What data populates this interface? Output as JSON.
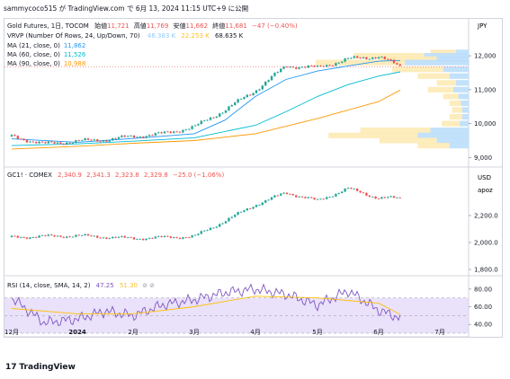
{
  "header": {
    "snapshot_line": "sammycoco515 が TradingView.com で 6月 13, 2024 11:15 UTC+9 に公開"
  },
  "currency_label": "JPY",
  "usd_label": "USD",
  "apoz_label": "apoz",
  "footer": {
    "brand": "TradingView"
  },
  "panes": {
    "main": {
      "symbol": "Gold Futures, 1日, TOCOM",
      "ohlc": {
        "open_label": "始値",
        "open": "11,721",
        "high_label": "高値",
        "high": "11,769",
        "low_label": "安値",
        "low": "11,662",
        "close_label": "終値",
        "close": "11,681",
        "change": "−47 (−0.40%)"
      },
      "vrvp": {
        "label": "VRVP (Number Of Rows, 24, Up/Down, 70)",
        "v1": "46.383 K",
        "v2": "22.253 K",
        "v3": "68.635 K"
      },
      "ma": [
        {
          "label": "MA (21, close, 0)",
          "value": "11,862",
          "color": "#2196f3"
        },
        {
          "label": "MA (60, close, 0)",
          "value": "11,526",
          "color": "#00bcd4"
        },
        {
          "label": "MA (90, close, 0)",
          "value": "10,988",
          "color": "#ff9800"
        }
      ]
    },
    "gc": {
      "label": "GC1! · COMEX",
      "o": "2,340.9",
      "h": "2,341.3",
      "l": "2,323.8",
      "c": "2,329.8",
      "change": "−25.0 (−1.06%)"
    },
    "rsi": {
      "label": "RSI (14, close, SMA, 14, 2)",
      "v1": "47.25",
      "v2": "51.30"
    }
  },
  "colors": {
    "up": "#26a69a",
    "down": "#ef5350",
    "rsi": "#7e57c2",
    "rsi_ma": "#ffc107",
    "band": "#d9c8f5"
  },
  "chart_data": [
    {
      "type": "line",
      "pane": "main",
      "y_axis_ticks": [
        "12,000",
        "11,000",
        "10,000",
        "9,000"
      ],
      "ylim": [
        8850,
        12400
      ],
      "x_ticks": [
        "12月",
        "2024",
        "2月",
        "3月",
        "4月",
        "5月",
        "6月",
        "7月"
      ],
      "series": [
        {
          "name": "Gold Futures, 1日, TOCOM",
          "x": [
            "12月",
            "12月中",
            "2024",
            "1月中",
            "2月",
            "2月中",
            "3月",
            "3月中",
            "4月",
            "4月中",
            "5月",
            "5月中",
            "6月",
            "6月中"
          ],
          "values": [
            9620,
            9400,
            9480,
            9520,
            9620,
            9700,
            9900,
            10400,
            10980,
            11700,
            11650,
            11900,
            11980,
            11681
          ]
        },
        {
          "name": "MA (21, close, 0)",
          "x": [
            "12月",
            "2024",
            "2月",
            "3月",
            "3月中",
            "4月",
            "4月中",
            "5月",
            "5月中",
            "6月",
            "6月中"
          ],
          "values": [
            9550,
            9450,
            9560,
            9700,
            10100,
            10800,
            11300,
            11550,
            11700,
            11840,
            11862
          ]
        },
        {
          "name": "MA (60, close, 0)",
          "x": [
            "12月",
            "2024",
            "2月",
            "3月",
            "4月",
            "4月中",
            "5月",
            "5月中",
            "6月",
            "6月中"
          ],
          "values": [
            9350,
            9400,
            9480,
            9580,
            9950,
            10350,
            10800,
            11150,
            11400,
            11526
          ]
        },
        {
          "name": "MA (90, close, 0)",
          "x": [
            "12月",
            "2024",
            "2月",
            "3月",
            "4月",
            "5月",
            "6月",
            "6月中"
          ],
          "values": [
            9250,
            9330,
            9420,
            9500,
            9700,
            10150,
            10650,
            10988
          ]
        }
      ],
      "volume_profile_rows": [
        {
          "price": 12100,
          "up": 10,
          "down": 20
        },
        {
          "price": 12000,
          "up": 35,
          "down": 55
        },
        {
          "price": 11900,
          "up": 25,
          "down": 45
        },
        {
          "price": 11800,
          "up": 50,
          "down": 70
        },
        {
          "price": 11600,
          "up": 20,
          "down": 40
        },
        {
          "price": 11400,
          "up": 15,
          "down": 25
        },
        {
          "price": 11200,
          "up": 10,
          "down": 15
        },
        {
          "price": 11000,
          "up": 12,
          "down": 20
        },
        {
          "price": 10800,
          "up": 8,
          "down": 12
        },
        {
          "price": 10600,
          "up": 6,
          "down": 9
        },
        {
          "price": 10400,
          "up": 5,
          "down": 8
        },
        {
          "price": 10200,
          "up": 5,
          "down": 10
        },
        {
          "price": 10000,
          "up": 7,
          "down": 14
        },
        {
          "price": 9800,
          "up": 30,
          "down": 55
        },
        {
          "price": 9650,
          "up": 40,
          "down": 70
        },
        {
          "price": 9500,
          "up": 25,
          "down": 45
        },
        {
          "price": 9350,
          "up": 15,
          "down": 25
        }
      ]
    },
    {
      "type": "line",
      "pane": "gc",
      "y_axis_ticks": [
        "2,200.0",
        "2,000.0",
        "1,800.0"
      ],
      "ylim": [
        1780,
        2460
      ],
      "series": [
        {
          "name": "GC1! · COMEX",
          "x": [
            "12月",
            "2024",
            "2月",
            "3月",
            "3月中",
            "4月",
            "4月中",
            "5月",
            "5月中",
            "6月",
            "6月中"
          ],
          "values": [
            2040,
            2050,
            2030,
            2045,
            2160,
            2280,
            2370,
            2310,
            2400,
            2330,
            2329.8
          ]
        }
      ]
    },
    {
      "type": "line",
      "pane": "rsi",
      "y_axis_ticks": [
        "80.00",
        "60.00",
        "40.00"
      ],
      "ylim": [
        30,
        85
      ],
      "band": [
        30,
        70
      ],
      "series": [
        {
          "name": "RSI (14, close, SMA, 14, 2)",
          "x": [
            "12月",
            "12月中",
            "2024",
            "1月中",
            "2月",
            "2月中",
            "3月",
            "3月中",
            "4月",
            "4月中",
            "5月",
            "5月中",
            "6月",
            "6月中"
          ],
          "values": [
            70,
            42,
            46,
            55,
            50,
            62,
            68,
            76,
            80,
            74,
            62,
            78,
            56,
            47.25
          ]
        },
        {
          "name": "RSI-based MA",
          "x": [
            "12月",
            "2024",
            "2月",
            "3月",
            "4月",
            "5月",
            "6月",
            "6月中"
          ],
          "values": [
            58,
            52,
            52,
            60,
            72,
            70,
            64,
            51.3
          ]
        }
      ]
    }
  ]
}
